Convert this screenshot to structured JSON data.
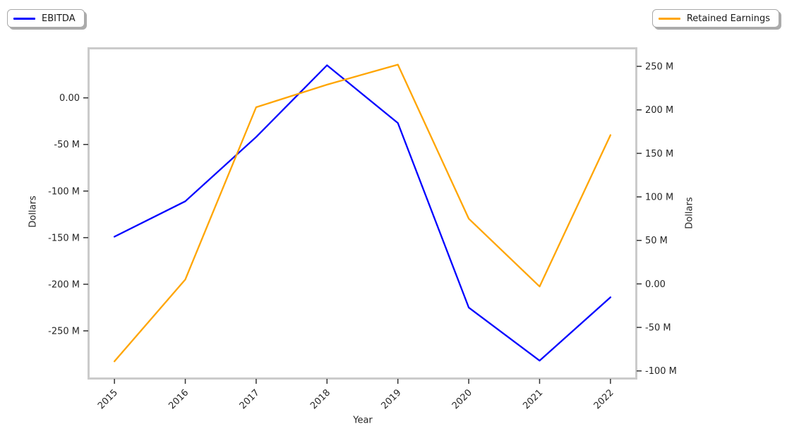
{
  "figure": {
    "background": "#ffffff",
    "legends": [
      {
        "label": "EBITDA",
        "color": "#0000ff",
        "position": "top-left"
      },
      {
        "label": "Retained Earnings",
        "color": "#ffa500",
        "position": "top-right"
      }
    ],
    "xlabel": "Year",
    "ylabel_left": "Dollars",
    "ylabel_right": "Dollars"
  },
  "chart_data": {
    "type": "line",
    "title": "",
    "xlabel": "Year",
    "ylabel_left": "Dollars",
    "ylabel_right": "Dollars",
    "x": [
      2015,
      2016,
      2017,
      2018,
      2019,
      2020,
      2021,
      2022
    ],
    "x_tick_labels": [
      "2015",
      "2016",
      "2017",
      "2018",
      "2019",
      "2020",
      "2021",
      "2022"
    ],
    "series": [
      {
        "name": "EBITDA",
        "axis": "left",
        "color": "#0000ff",
        "values_million_usd": [
          -149,
          -111,
          -42,
          35,
          -27,
          -225,
          -282,
          -214
        ]
      },
      {
        "name": "Retained Earnings",
        "axis": "right",
        "color": "#ffa500",
        "values_million_usd": [
          -89,
          5,
          203,
          229,
          252,
          75,
          -3,
          171
        ]
      }
    ],
    "left_axis": {
      "label": "Dollars",
      "ticks_million": [
        0,
        -50,
        -100,
        -150,
        -200,
        -250
      ],
      "tick_labels": [
        "0.00",
        "-50 M",
        "-100 M",
        "-150 M",
        "-200 M",
        "-250 M"
      ],
      "ylim_million": [
        -300,
        52
      ]
    },
    "right_axis": {
      "label": "Dollars",
      "ticks_million": [
        250,
        200,
        150,
        100,
        50,
        0,
        -50,
        -100
      ],
      "tick_labels": [
        "250 M",
        "200 M",
        "150 M",
        "100 M",
        "50 M",
        "0.00",
        "-50 M",
        "-100 M"
      ],
      "ylim_million": [
        -107.5,
        269.5
      ]
    },
    "xlim_index": [
      -0.35,
      7.35
    ],
    "grid": false,
    "legend_position": "outside-top-left-and-top-right",
    "frame_color": "#cbcbcb",
    "tick_color": "#333333",
    "tick_label_color": "#262626"
  }
}
